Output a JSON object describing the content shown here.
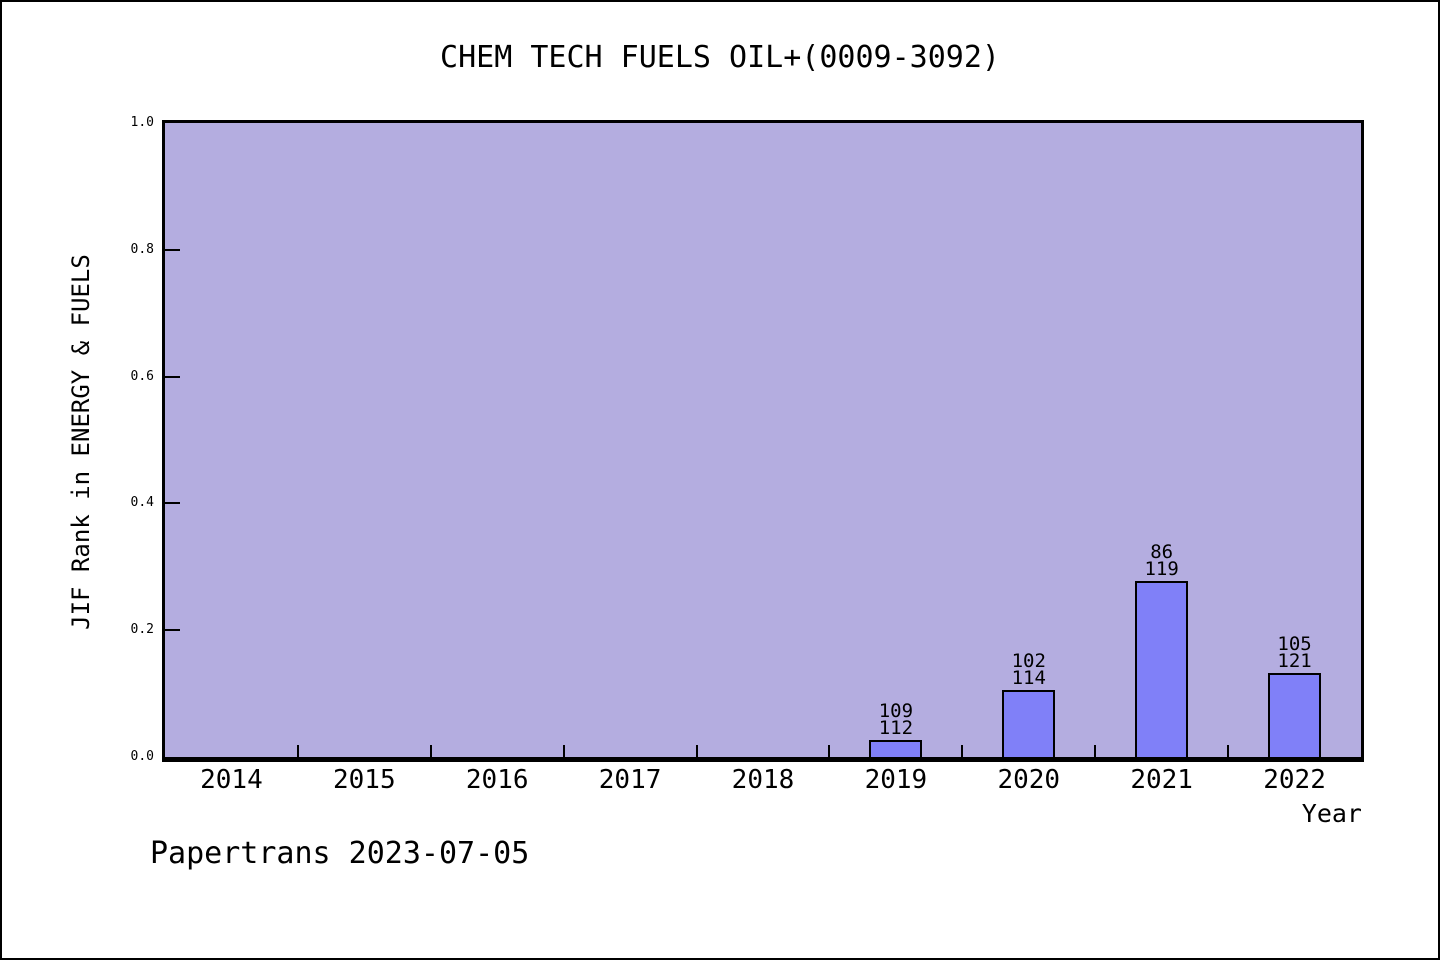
{
  "title": "CHEM TECH FUELS OIL+(0009-3092)",
  "footer": "Papertrans 2023-07-05",
  "chart_data": {
    "type": "bar",
    "title": "CHEM TECH FUELS OIL+(0009-3092)",
    "xlabel": "Year",
    "ylabel": "JIF Rank in ENERGY & FUELS",
    "categories": [
      "2014",
      "2015",
      "2016",
      "2017",
      "2018",
      "2019",
      "2020",
      "2021",
      "2022"
    ],
    "ytick_labels": [
      "0.0",
      "0.2",
      "0.4",
      "0.6",
      "0.8",
      "1.0"
    ],
    "yticks": [
      0.0,
      0.2,
      0.4,
      0.6,
      0.8,
      1.0
    ],
    "ylim": [
      0.0,
      1.0
    ],
    "grid": false,
    "legend": "none",
    "bar_note": "bar value = 1 - rank/total; label shows rank over total",
    "bars": [
      {
        "category": "2019",
        "rank": 109,
        "total": 112,
        "value": 0.0268,
        "label_top": "109",
        "label_bottom": "112"
      },
      {
        "category": "2020",
        "rank": 102,
        "total": 114,
        "value": 0.1053,
        "label_top": "102",
        "label_bottom": "114"
      },
      {
        "category": "2021",
        "rank": 86,
        "total": 119,
        "value": 0.2773,
        "label_top": "86",
        "label_bottom": "119"
      },
      {
        "category": "2022",
        "rank": 105,
        "total": 121,
        "value": 0.1322,
        "label_top": "105",
        "label_bottom": "121"
      }
    ],
    "colors": {
      "page_bg": "#ffffff",
      "plot_bg": "#b4ade0",
      "bar_fill": "#8080f8",
      "bar_border": "#000000",
      "frame": "#000000",
      "text": "#000000"
    }
  }
}
